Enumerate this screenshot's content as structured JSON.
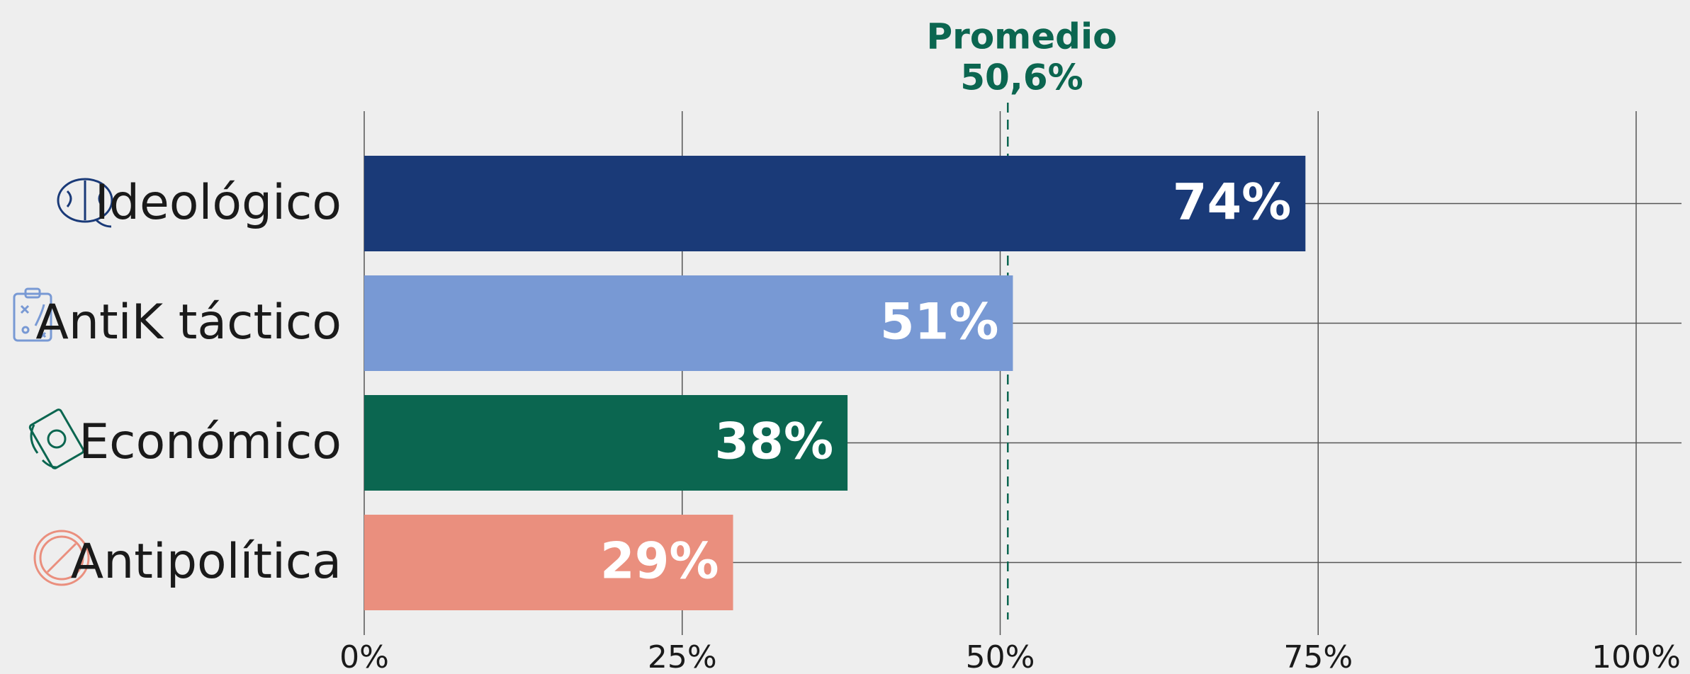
{
  "chart_data": {
    "type": "bar",
    "orientation": "horizontal",
    "categories": [
      "Ideológico",
      "AntiK táctico",
      "Económico",
      "Antipolítica"
    ],
    "values": [
      74,
      51,
      38,
      29
    ],
    "value_labels": [
      "74%",
      "51%",
      "38%",
      "29%"
    ],
    "colors": [
      "#1a3a78",
      "#7899d4",
      "#0b6650",
      "#ea8f7e"
    ],
    "xlim": [
      0,
      100
    ],
    "xticks": [
      {
        "value": 0,
        "label": "0%"
      },
      {
        "value": 25,
        "label": "25%"
      },
      {
        "value": 50,
        "label": "50%"
      },
      {
        "value": 75,
        "label": "75%"
      },
      {
        "value": 100,
        "label": "100%"
      }
    ],
    "grid": true,
    "average": {
      "label": "Promedio",
      "value": 50.6,
      "value_label": "50,6%"
    }
  }
}
